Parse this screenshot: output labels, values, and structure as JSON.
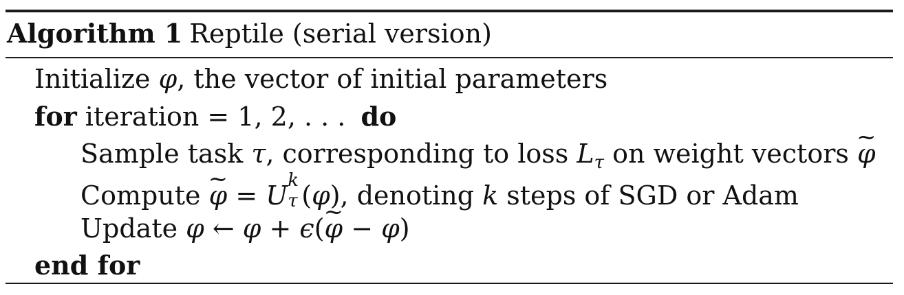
{
  "algorithm": {
    "label": "Algorithm 1",
    "name": "Reptile (serial version)"
  },
  "lines": {
    "init_text": "Initialize ",
    "init_var": "φ",
    "init_rest": ", the vector of initial parameters",
    "for_kw": "for",
    "for_text": " iteration = 1, 2, . . . ",
    "do_kw": "do",
    "sample_text": "Sample task ",
    "sample_tau": "τ",
    "sample_mid": ", corresponding to loss ",
    "sample_L": "L",
    "sample_L_sub": "τ",
    "sample_rest": " on weight vectors ",
    "tilde": "~",
    "phi": "φ",
    "compute_text": "Compute ",
    "compute_eq": " = ",
    "compute_U": "U",
    "compute_U_sup": "k",
    "compute_U_sub": "τ",
    "compute_arg": "(",
    "compute_arg_close": ")",
    "compute_rest_a": ", denoting ",
    "compute_k": "k",
    "compute_rest_b": " steps of SGD or Adam",
    "update_text": "Update ",
    "update_arrow": " ← ",
    "update_plus": " + ",
    "update_eps": "ϵ",
    "update_paren_open": "(",
    "update_minus": " − ",
    "update_paren_close": ")",
    "end_for": "end for"
  }
}
